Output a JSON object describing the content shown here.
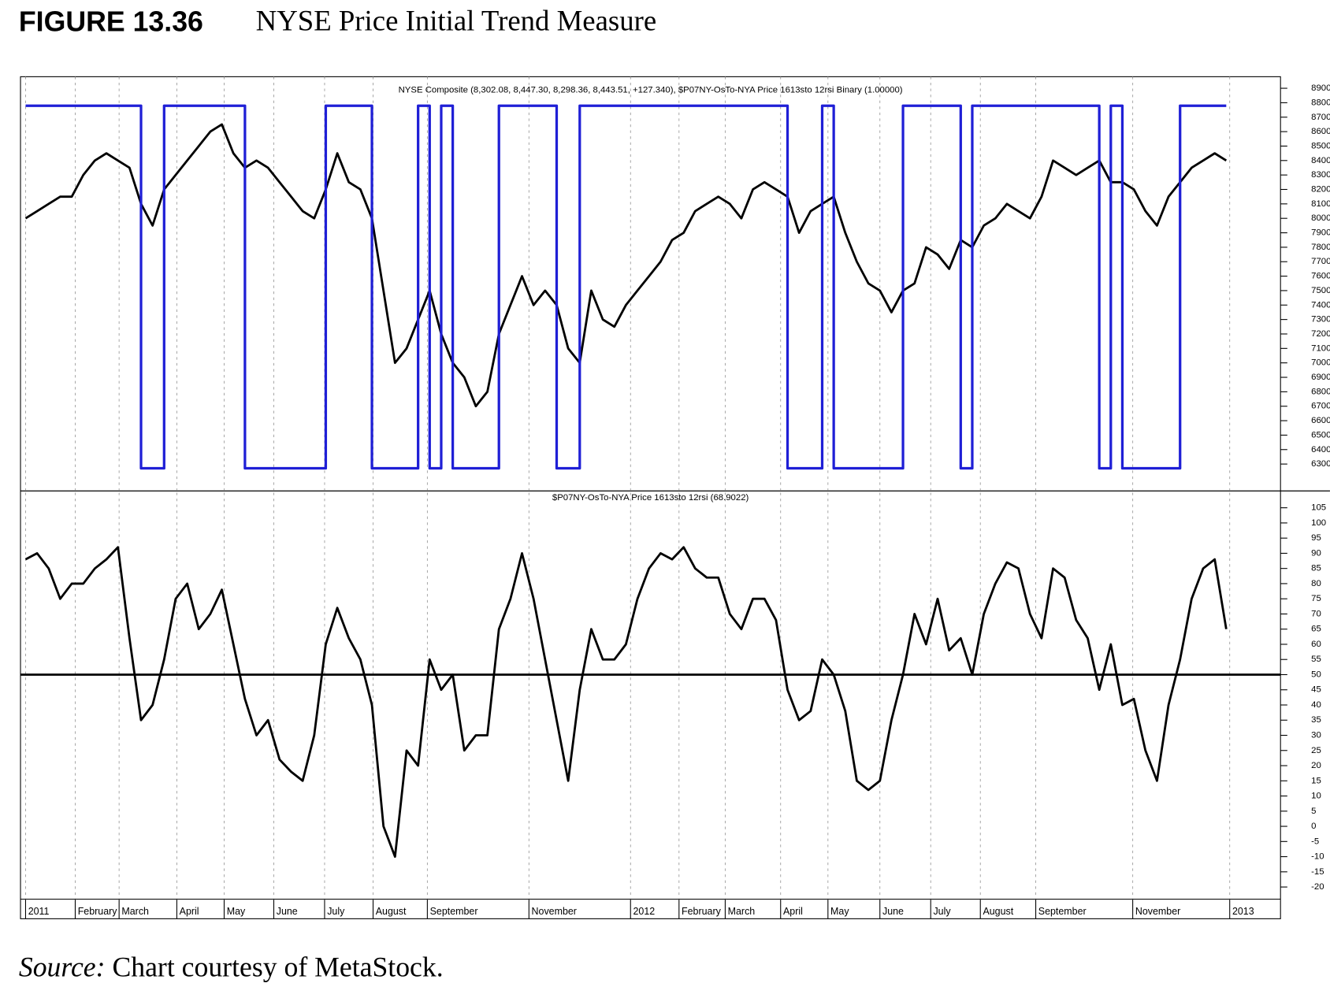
{
  "figure_label": "FIGURE 13.36",
  "figure_title": "NYSE Price Initial Trend Measure",
  "source_label": "Source:",
  "source": "Chart courtesy of MetaStock.",
  "chart_data": [
    {
      "type": "line",
      "title": "NYSE Composite (8,302.08, 8,447.30, 8,298.36, 8,443.51, +127.340), $P07NY-OsTo-NYA Price 1613sto 12rsi Binary (1.00000)",
      "xlim": [
        -0.44,
        108.7
      ],
      "ylim": [
        6120,
        8980
      ],
      "yticks": [
        6300,
        6400,
        6500,
        6600,
        6700,
        6800,
        6900,
        7000,
        7100,
        7200,
        7300,
        7400,
        7500,
        7600,
        7700,
        7800,
        7900,
        8000,
        8100,
        8200,
        8300,
        8400,
        8500,
        8600,
        8700,
        8800,
        8900
      ],
      "y2lim": [
        -0.06,
        1.08
      ],
      "grid": true,
      "series": [
        {
          "name": "NYSE Composite",
          "color": "#000000",
          "values": [
            8000,
            8050,
            8100,
            8150,
            8150,
            8300,
            8400,
            8450,
            8400,
            8350,
            8100,
            7950,
            8200,
            8300,
            8400,
            8500,
            8600,
            8650,
            8450,
            8350,
            8400,
            8350,
            8250,
            8150,
            8050,
            8000,
            8200,
            8450,
            8250,
            8200,
            8000,
            7500,
            7000,
            7100,
            7300,
            7500,
            7200,
            7000,
            6900,
            6700,
            6800,
            7200,
            7400,
            7600,
            7400,
            7500,
            7400,
            7100,
            7000,
            7500,
            7300,
            7250,
            7400,
            7500,
            7600,
            7700,
            7850,
            7900,
            8050,
            8100,
            8150,
            8100,
            8000,
            8200,
            8250,
            8200,
            8150,
            7900,
            8050,
            8100,
            8150,
            7900,
            7700,
            7550,
            7500,
            7350,
            7500,
            7550,
            7800,
            7750,
            7650,
            7850,
            7800,
            7950,
            8000,
            8100,
            8050,
            8000,
            8150,
            8400,
            8350,
            8300,
            8350,
            8400,
            8250,
            8250,
            8200,
            8050,
            7950,
            8150,
            8250,
            8350,
            8400,
            8450,
            8400
          ]
        },
        {
          "name": "$P07NY-OsTo-NYA Price 1613sto 12rsi Binary",
          "color": "#1f1fd6",
          "axis": "y2",
          "drawstyle": "steps",
          "values": [
            1,
            1,
            1,
            1,
            1,
            1,
            1,
            1,
            1,
            1,
            0,
            0,
            1,
            1,
            1,
            1,
            1,
            1,
            1,
            0,
            0,
            0,
            0,
            0,
            0,
            0,
            1,
            1,
            1,
            1,
            0,
            0,
            0,
            0,
            1,
            0,
            1,
            0,
            0,
            0,
            0,
            1,
            1,
            1,
            1,
            1,
            0,
            0,
            1,
            1,
            1,
            1,
            1,
            1,
            1,
            1,
            1,
            1,
            1,
            1,
            1,
            1,
            1,
            1,
            1,
            1,
            0,
            0,
            0,
            1,
            0,
            0,
            0,
            0,
            0,
            0,
            1,
            1,
            1,
            1,
            1,
            0,
            1,
            1,
            1,
            1,
            1,
            1,
            1,
            1,
            1,
            1,
            1,
            0,
            1,
            0,
            0,
            0,
            0,
            0,
            1,
            1,
            1,
            1,
            1
          ]
        }
      ]
    },
    {
      "type": "line",
      "title": "$P07NY-OsTo-NYA Price 1613sto 12rsi (68.9022)",
      "xlim": [
        -0.44,
        108.7
      ],
      "ylim": [
        -24,
        110
      ],
      "yticks": [
        -20,
        -15,
        -10,
        -5,
        0,
        5,
        10,
        15,
        20,
        25,
        30,
        35,
        40,
        45,
        50,
        55,
        60,
        65,
        70,
        75,
        80,
        85,
        90,
        95,
        100,
        105
      ],
      "xticks": [
        {
          "value": 0,
          "label": "2011"
        },
        {
          "value": 4.3,
          "label": "February"
        },
        {
          "value": 8.1,
          "label": "March"
        },
        {
          "value": 13.1,
          "label": "April"
        },
        {
          "value": 17.2,
          "label": "May"
        },
        {
          "value": 21.5,
          "label": "June"
        },
        {
          "value": 25.9,
          "label": "July"
        },
        {
          "value": 30.1,
          "label": "August"
        },
        {
          "value": 34.8,
          "label": "September"
        },
        {
          "value": 43.6,
          "label": "November"
        },
        {
          "value": 52.4,
          "label": "2012"
        },
        {
          "value": 56.6,
          "label": "February"
        },
        {
          "value": 60.6,
          "label": "March"
        },
        {
          "value": 65.4,
          "label": "April"
        },
        {
          "value": 69.5,
          "label": "May"
        },
        {
          "value": 74,
          "label": "June"
        },
        {
          "value": 78.4,
          "label": "July"
        },
        {
          "value": 82.7,
          "label": "August"
        },
        {
          "value": 87.5,
          "label": "September"
        },
        {
          "value": 95.9,
          "label": "November"
        },
        {
          "value": 104.3,
          "label": "2013"
        }
      ],
      "hlines": [
        50
      ],
      "grid": true,
      "series": [
        {
          "name": "$P07NY-OsTo-NYA Price 1613sto 12rsi",
          "color": "#000000",
          "values": [
            88,
            90,
            85,
            75,
            80,
            80,
            85,
            88,
            92,
            62,
            35,
            40,
            55,
            75,
            80,
            65,
            70,
            78,
            60,
            42,
            30,
            35,
            22,
            18,
            15,
            30,
            60,
            72,
            62,
            55,
            40,
            0,
            -10,
            25,
            20,
            55,
            45,
            50,
            25,
            30,
            30,
            65,
            75,
            90,
            75,
            55,
            35,
            15,
            45,
            65,
            55,
            55,
            60,
            75,
            85,
            90,
            88,
            92,
            85,
            82,
            82,
            70,
            65,
            75,
            75,
            68,
            45,
            35,
            38,
            55,
            50,
            38,
            15,
            12,
            15,
            35,
            50,
            70,
            60,
            75,
            58,
            62,
            50,
            70,
            80,
            87,
            85,
            70,
            62,
            85,
            82,
            68,
            62,
            45,
            60,
            40,
            42,
            25,
            15,
            40,
            55,
            75,
            85,
            88,
            65
          ]
        }
      ]
    }
  ]
}
